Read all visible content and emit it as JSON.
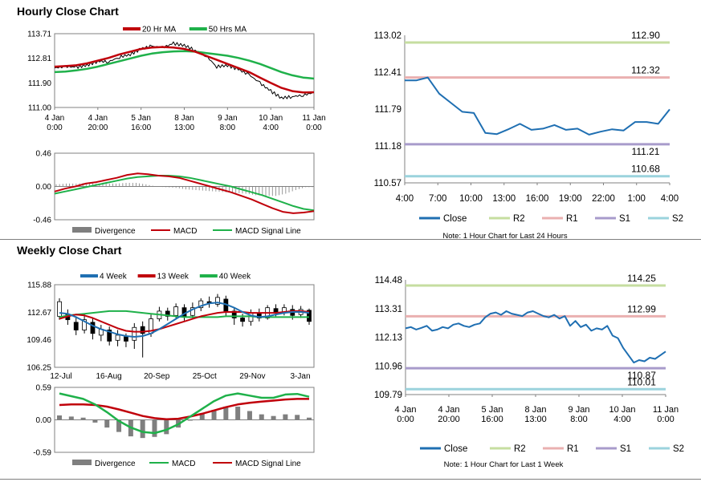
{
  "titles": {
    "hourly": "Hourly Close Chart",
    "weekly": "Weekly Close Chart"
  },
  "colors": {
    "close": "#1f6fb2",
    "ma20": "#c0000a",
    "ma50": "#1fb14a",
    "r2": "#c6dea0",
    "r1": "#eab0b0",
    "s1": "#a89bcb",
    "s2": "#9bd3dd",
    "divergence": "#7f7f7f",
    "candle": "#000000"
  },
  "chart_data": [
    {
      "id": "hourly-price",
      "type": "line",
      "yticks": [
        "113.71",
        "112.81",
        "111.90",
        "111.00"
      ],
      "ylim": [
        111.0,
        113.71
      ],
      "xticks": [
        [
          "4 Jan",
          "0:00"
        ],
        [
          "4 Jan",
          "20:00"
        ],
        [
          "5 Jan",
          "16:00"
        ],
        [
          "8 Jan",
          "13:00"
        ],
        [
          "9 Jan",
          "8:00"
        ],
        [
          "10 Jan",
          "4:00"
        ],
        [
          "11 Jan",
          "0:00"
        ]
      ],
      "legend": [
        "20 Hr MA",
        "50 Hrs MA"
      ],
      "series": [
        {
          "name": "Close",
          "values": [
            112.45,
            112.5,
            112.48,
            112.55,
            112.7,
            112.68,
            112.85,
            112.95,
            113.15,
            113.25,
            113.2,
            113.35,
            113.28,
            113.1,
            112.9,
            112.5,
            112.55,
            112.4,
            112.2,
            111.9,
            111.6,
            111.35,
            111.4,
            111.45,
            111.55
          ]
        },
        {
          "name": "20 Hr MA",
          "values": [
            112.5,
            112.52,
            112.55,
            112.62,
            112.72,
            112.82,
            112.95,
            113.05,
            113.15,
            113.2,
            113.22,
            113.2,
            113.15,
            113.05,
            112.9,
            112.75,
            112.6,
            112.45,
            112.3,
            112.1,
            111.9,
            111.72,
            111.6,
            111.55,
            111.56
          ]
        },
        {
          "name": "50 Hrs MA",
          "values": [
            112.3,
            112.32,
            112.36,
            112.42,
            112.5,
            112.6,
            112.7,
            112.8,
            112.9,
            112.98,
            113.03,
            113.06,
            113.07,
            113.05,
            113.0,
            112.95,
            112.9,
            112.82,
            112.72,
            112.6,
            112.45,
            112.3,
            112.18,
            112.1,
            112.06
          ]
        }
      ]
    },
    {
      "id": "hourly-macd",
      "type": "line",
      "yticks": [
        "0.46",
        "0.00",
        "-0.46"
      ],
      "ylim": [
        -0.46,
        0.46
      ],
      "legend": [
        "Divergence",
        "MACD",
        "MACD Signal Line"
      ],
      "series": [
        {
          "name": "MACD",
          "values": [
            -0.07,
            -0.03,
            0.0,
            0.04,
            0.06,
            0.09,
            0.12,
            0.16,
            0.18,
            0.17,
            0.15,
            0.14,
            0.12,
            0.08,
            0.04,
            0.0,
            -0.04,
            -0.08,
            -0.13,
            -0.18,
            -0.24,
            -0.3,
            -0.35,
            -0.37,
            -0.36,
            -0.34
          ]
        },
        {
          "name": "MACD Signal Line",
          "values": [
            -0.1,
            -0.07,
            -0.04,
            -0.01,
            0.02,
            0.05,
            0.08,
            0.11,
            0.13,
            0.14,
            0.15,
            0.15,
            0.14,
            0.12,
            0.09,
            0.06,
            0.03,
            0.0,
            -0.04,
            -0.08,
            -0.12,
            -0.17,
            -0.22,
            -0.27,
            -0.31,
            -0.33
          ]
        },
        {
          "name": "Divergence",
          "values": [
            0.03,
            0.04,
            0.04,
            0.05,
            0.04,
            0.04,
            0.04,
            0.05,
            0.05,
            0.03,
            0.0,
            -0.01,
            -0.02,
            -0.04,
            -0.05,
            -0.06,
            -0.07,
            -0.08,
            -0.09,
            -0.1,
            -0.12,
            -0.13,
            -0.13,
            -0.1,
            -0.05,
            -0.01
          ]
        }
      ]
    },
    {
      "id": "hourly-last24",
      "type": "line",
      "yticks": [
        "113.02",
        "112.41",
        "111.79",
        "111.18",
        "110.57"
      ],
      "ylim": [
        110.57,
        113.02
      ],
      "xticks": [
        "4:00",
        "7:00",
        "10:00",
        "13:00",
        "16:00",
        "19:00",
        "22:00",
        "1:00",
        "4:00"
      ],
      "levels": [
        {
          "name": "R2",
          "value": 112.9,
          "label": "112.90"
        },
        {
          "name": "R1",
          "value": 112.32,
          "label": "112.32"
        },
        {
          "name": "S1",
          "value": 111.21,
          "label": "111.21"
        },
        {
          "name": "S2",
          "value": 110.68,
          "label": "110.68"
        }
      ],
      "series": [
        {
          "name": "Close",
          "values": [
            112.27,
            112.27,
            112.32,
            112.05,
            111.9,
            111.75,
            111.73,
            111.4,
            111.38,
            111.46,
            111.55,
            111.45,
            111.47,
            111.53,
            111.45,
            111.47,
            111.37,
            111.42,
            111.46,
            111.44,
            111.58,
            111.58,
            111.55,
            111.79
          ]
        }
      ],
      "legend": [
        "Close",
        "R2",
        "R1",
        "S1",
        "S2"
      ],
      "note": "Note: 1 Hour Chart for Last 24 Hours"
    },
    {
      "id": "weekly-price",
      "type": "candlestick",
      "yticks": [
        "115.88",
        "112.67",
        "109.46",
        "106.25"
      ],
      "ylim": [
        106.25,
        115.88
      ],
      "xticks": [
        "12-Jul",
        "16-Aug",
        "20-Sep",
        "25-Oct",
        "29-Nov",
        "3-Jan"
      ],
      "legend": [
        "4 Week",
        "13 Week",
        "40 Week"
      ],
      "candles": [
        [
          112.2,
          113.9,
          114.3,
          111.8
        ],
        [
          112.4,
          111.8,
          113.0,
          111.2
        ],
        [
          111.5,
          110.6,
          112.2,
          110.0
        ],
        [
          110.6,
          111.8,
          112.5,
          110.2
        ],
        [
          111.5,
          110.2,
          112.0,
          109.5
        ],
        [
          110.0,
          110.7,
          111.2,
          109.3
        ],
        [
          110.6,
          109.3,
          111.0,
          108.8
        ],
        [
          109.4,
          110.0,
          110.6,
          108.7
        ],
        [
          109.8,
          109.3,
          110.2,
          108.6
        ],
        [
          109.4,
          110.9,
          111.4,
          108.4
        ],
        [
          111.0,
          110.2,
          111.6,
          107.4
        ],
        [
          110.2,
          111.9,
          112.4,
          109.8
        ],
        [
          111.9,
          112.8,
          113.3,
          111.6
        ],
        [
          112.8,
          112.2,
          113.2,
          111.7
        ],
        [
          112.3,
          113.3,
          113.7,
          112.0
        ],
        [
          113.2,
          112.2,
          113.6,
          111.7
        ],
        [
          112.3,
          113.2,
          113.8,
          111.9
        ],
        [
          113.2,
          114.0,
          114.3,
          112.8
        ],
        [
          113.9,
          113.7,
          114.5,
          113.2
        ],
        [
          113.6,
          114.4,
          114.8,
          113.3
        ],
        [
          114.2,
          112.8,
          114.6,
          112.2
        ],
        [
          112.8,
          112.0,
          113.2,
          111.2
        ],
        [
          112.0,
          111.6,
          112.5,
          111.0
        ],
        [
          111.6,
          112.6,
          113.0,
          111.1
        ],
        [
          112.6,
          112.0,
          113.1,
          111.6
        ],
        [
          112.0,
          113.2,
          113.5,
          111.8
        ],
        [
          113.1,
          112.6,
          113.6,
          112.2
        ],
        [
          112.6,
          113.2,
          113.6,
          112.3
        ],
        [
          113.0,
          112.3,
          113.5,
          111.8
        ],
        [
          112.4,
          113.0,
          113.4,
          112.0
        ],
        [
          112.9,
          111.6,
          113.1,
          111.2
        ]
      ],
      "series": [
        {
          "name": "4 Week",
          "values": [
            112.6,
            112.5,
            112.1,
            111.6,
            111.1,
            110.7,
            110.4,
            110.1,
            109.9,
            109.8,
            109.9,
            110.2,
            110.7,
            111.3,
            111.9,
            112.5,
            113.0,
            113.4,
            113.7,
            113.8,
            113.6,
            113.2,
            112.7,
            112.3,
            112.1,
            112.2,
            112.4,
            112.6,
            112.7,
            112.7,
            112.6
          ]
        },
        {
          "name": "13 Week",
          "values": [
            111.9,
            112.2,
            112.4,
            112.3,
            112.0,
            111.6,
            111.2,
            110.8,
            110.5,
            110.4,
            110.4,
            110.5,
            110.7,
            111.0,
            111.3,
            111.6,
            111.9,
            112.2,
            112.4,
            112.6,
            112.7,
            112.7,
            112.7,
            112.6,
            112.6,
            112.6,
            112.6,
            112.7,
            112.8,
            112.8,
            112.7
          ]
        },
        {
          "name": "40 Week",
          "values": [
            112.1,
            112.3,
            112.4,
            112.5,
            112.6,
            112.7,
            112.8,
            112.8,
            112.8,
            112.7,
            112.6,
            112.5,
            112.4,
            112.3,
            112.2,
            112.1,
            112.1,
            112.1,
            112.1,
            112.1,
            112.2,
            112.2,
            112.2,
            112.2,
            112.1,
            112.1,
            112.1,
            112.1,
            112.1,
            112.1,
            112.1
          ]
        }
      ]
    },
    {
      "id": "weekly-macd",
      "type": "line",
      "yticks": [
        "0.59",
        "0.00",
        "-0.59"
      ],
      "ylim": [
        -0.59,
        0.59
      ],
      "legend": [
        "Divergence",
        "MACD",
        "MACD Signal Line"
      ],
      "series": [
        {
          "name": "MACD",
          "values": [
            0.48,
            0.43,
            0.38,
            0.28,
            0.14,
            -0.02,
            -0.14,
            -0.22,
            -0.24,
            -0.18,
            -0.08,
            0.06,
            0.2,
            0.34,
            0.44,
            0.48,
            0.44,
            0.4,
            0.4,
            0.46,
            0.47,
            0.42
          ]
        },
        {
          "name": "MACD Signal Line",
          "values": [
            0.27,
            0.28,
            0.28,
            0.27,
            0.24,
            0.19,
            0.13,
            0.07,
            0.03,
            0.01,
            0.02,
            0.06,
            0.11,
            0.17,
            0.23,
            0.28,
            0.31,
            0.33,
            0.35,
            0.37,
            0.38,
            0.38
          ]
        },
        {
          "name": "Divergence",
          "values": [
            0.08,
            0.06,
            0.04,
            -0.05,
            -0.14,
            -0.22,
            -0.3,
            -0.33,
            -0.31,
            -0.26,
            -0.14,
            0.0,
            0.12,
            0.18,
            0.24,
            0.24,
            0.16,
            0.1,
            0.07,
            0.1,
            0.09,
            0.04
          ]
        }
      ]
    },
    {
      "id": "weekly-last-week",
      "type": "line",
      "yticks": [
        "114.48",
        "113.31",
        "112.13",
        "110.96",
        "109.79"
      ],
      "ylim": [
        109.79,
        114.48
      ],
      "xticks": [
        [
          "4 Jan",
          "0:00"
        ],
        [
          "4 Jan",
          "20:00"
        ],
        [
          "5 Jan",
          "16:00"
        ],
        [
          "8 Jan",
          "13:00"
        ],
        [
          "9 Jan",
          "8:00"
        ],
        [
          "10 Jan",
          "4:00"
        ],
        [
          "11 Jan",
          "0:00"
        ]
      ],
      "levels": [
        {
          "name": "R2",
          "value": 114.25,
          "label": "114.25"
        },
        {
          "name": "R1",
          "value": 112.99,
          "label": "112.99"
        },
        {
          "name": "S1",
          "value": 110.87,
          "label": "110.87"
        },
        {
          "name": "S2",
          "value": 110.01,
          "label": "110.01"
        }
      ],
      "series": [
        {
          "name": "Close",
          "values": [
            112.5,
            112.55,
            112.45,
            112.52,
            112.6,
            112.4,
            112.45,
            112.55,
            112.5,
            112.65,
            112.7,
            112.6,
            112.55,
            112.65,
            112.7,
            112.95,
            113.1,
            113.15,
            113.05,
            113.2,
            113.1,
            113.05,
            113.0,
            113.15,
            113.2,
            113.1,
            113.0,
            112.95,
            113.05,
            112.9,
            113.0,
            112.6,
            112.8,
            112.55,
            112.65,
            112.4,
            112.5,
            112.45,
            112.6,
            112.2,
            112.1,
            111.7,
            111.4,
            111.1,
            111.2,
            111.15,
            111.3,
            111.25,
            111.4,
            111.55
          ]
        }
      ],
      "legend": [
        "Close",
        "R2",
        "R1",
        "S1",
        "S2"
      ],
      "note": "Note: 1 Hour Chart for Last 1 Week"
    }
  ]
}
